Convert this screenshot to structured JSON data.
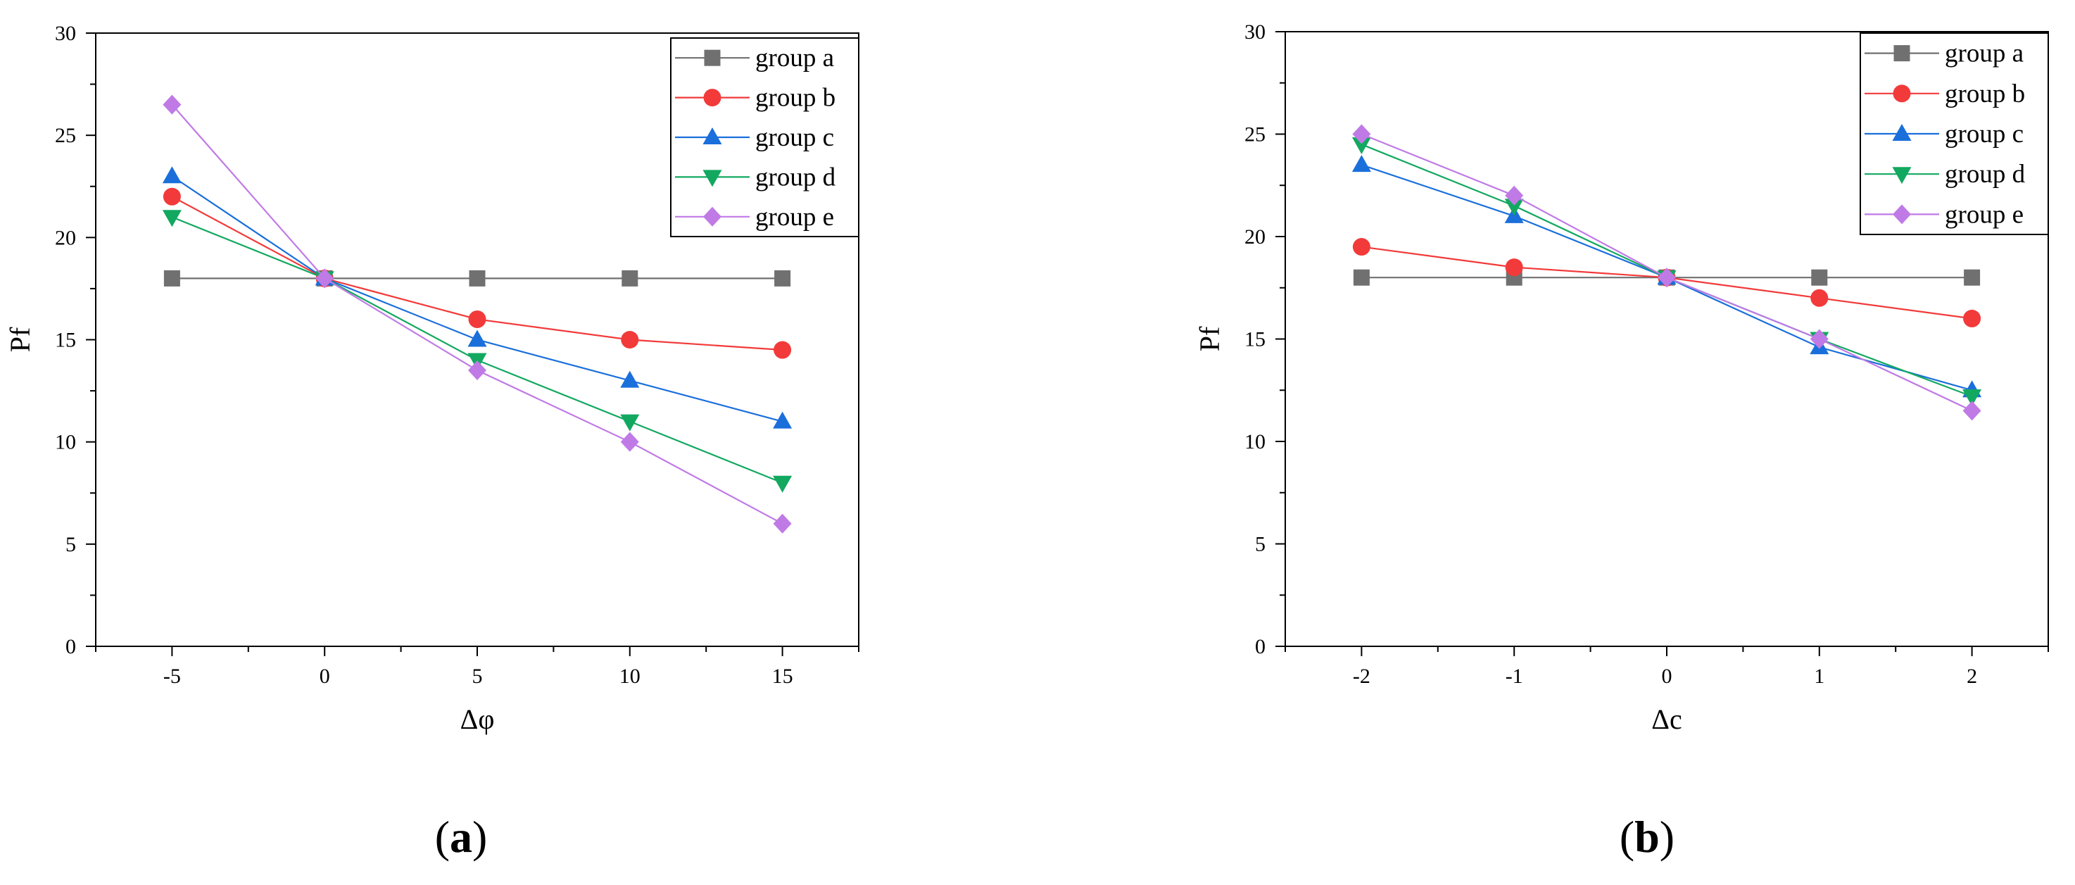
{
  "figure": {
    "panels": [
      {
        "label_open": "(",
        "label_letter": "a",
        "label_close": ")"
      },
      {
        "label_open": "(",
        "label_letter": "b",
        "label_close": ")"
      }
    ]
  },
  "chart_data": [
    {
      "type": "line",
      "title": "",
      "xlabel": "Δφ",
      "ylabel": "Pf",
      "x": [
        -5,
        0,
        5,
        10,
        15
      ],
      "xticks": [
        -5,
        0,
        5,
        10,
        15
      ],
      "xlim": [
        -7.5,
        17.5
      ],
      "ylim": [
        0,
        30
      ],
      "yticks": [
        0,
        5,
        10,
        15,
        20,
        25,
        30
      ],
      "legend_position": "top-right",
      "series": [
        {
          "name": "group a",
          "color": "#707070",
          "marker": "square",
          "values": [
            18,
            18,
            18,
            18,
            18
          ]
        },
        {
          "name": "group b",
          "color": "#f23a3a",
          "marker": "circle",
          "values": [
            22,
            18,
            16,
            15,
            14.5
          ]
        },
        {
          "name": "group c",
          "color": "#1a6fdb",
          "marker": "triangle-up",
          "values": [
            23,
            18,
            15,
            13,
            11
          ]
        },
        {
          "name": "group d",
          "color": "#12a860",
          "marker": "triangle-down",
          "values": [
            21,
            18,
            14,
            11,
            8
          ]
        },
        {
          "name": "group e",
          "color": "#c07ae6",
          "marker": "diamond",
          "values": [
            26.5,
            18,
            13.5,
            10,
            6
          ]
        }
      ]
    },
    {
      "type": "line",
      "title": "",
      "xlabel": "Δc",
      "ylabel": "Pf",
      "x": [
        -2,
        -1,
        0,
        1,
        2
      ],
      "xticks": [
        -2,
        -1,
        0,
        1,
        2
      ],
      "xlim": [
        -2.5,
        2.5
      ],
      "ylim": [
        0,
        30
      ],
      "yticks": [
        0,
        5,
        10,
        15,
        20,
        25,
        30
      ],
      "legend_position": "top-right",
      "series": [
        {
          "name": "group a",
          "color": "#707070",
          "marker": "square",
          "values": [
            18,
            18,
            18,
            18,
            18
          ]
        },
        {
          "name": "group b",
          "color": "#f23a3a",
          "marker": "circle",
          "values": [
            19.5,
            18.5,
            18,
            17,
            16
          ]
        },
        {
          "name": "group c",
          "color": "#1a6fdb",
          "marker": "triangle-up",
          "values": [
            23.5,
            21,
            18,
            14.6,
            12.5
          ]
        },
        {
          "name": "group d",
          "color": "#12a860",
          "marker": "triangle-down",
          "values": [
            24.5,
            21.5,
            18,
            15,
            12.2
          ]
        },
        {
          "name": "group e",
          "color": "#c07ae6",
          "marker": "diamond",
          "values": [
            25,
            22,
            18,
            15,
            11.5
          ]
        }
      ]
    }
  ]
}
